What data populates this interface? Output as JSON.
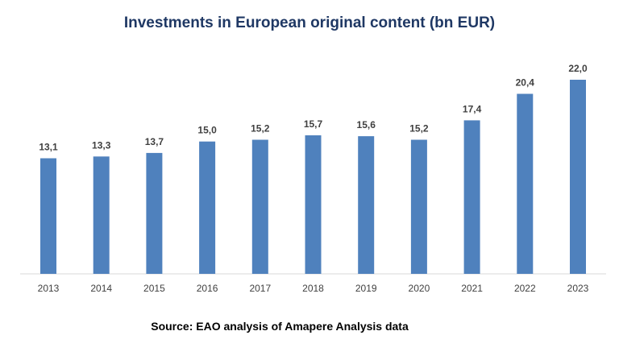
{
  "chart_data": {
    "type": "bar",
    "title": "Investments in European original content (bn EUR)",
    "categories": [
      "2013",
      "2014",
      "2015",
      "2016",
      "2017",
      "2018",
      "2019",
      "2020",
      "2021",
      "2022",
      "2023"
    ],
    "values": [
      13.1,
      13.3,
      13.7,
      15.0,
      15.2,
      15.7,
      15.6,
      15.2,
      17.4,
      20.4,
      22.0
    ],
    "value_labels": [
      "13,1",
      "13,3",
      "13,7",
      "15,0",
      "15,2",
      "15,7",
      "15,6",
      "15,2",
      "17,4",
      "20,4",
      "22,0"
    ],
    "xlabel": "",
    "ylabel": "",
    "ylim": [
      0,
      22.0
    ],
    "grid": false,
    "legend": "none",
    "bar_color": "#4f81bd"
  },
  "source": "Source: EAO analysis of Amapere Analysis data"
}
